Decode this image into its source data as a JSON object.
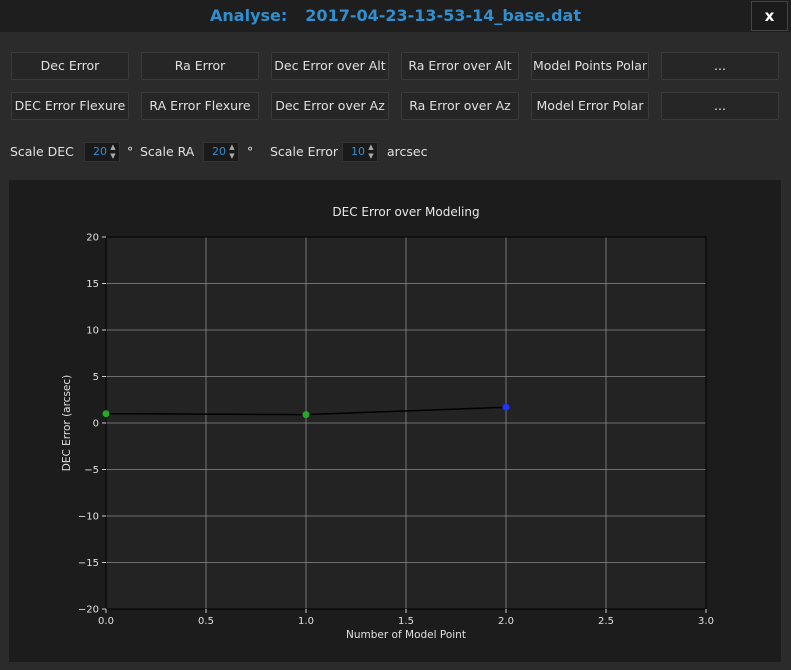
{
  "window": {
    "title_label": "Analyse:",
    "title_file": "2017-04-23-13-53-14_base.dat",
    "close_label": "x"
  },
  "buttons_row1": [
    "Dec Error",
    "Ra Error",
    "Dec Error over Alt",
    "Ra Error over Alt",
    "Model Points Polar",
    "..."
  ],
  "buttons_row2": [
    "DEC Error Flexure",
    "RA Error Flexure",
    "Dec Error over Az",
    "Ra Error over Az",
    "Model Error Polar",
    "..."
  ],
  "scales": {
    "dec_label": "Scale DEC",
    "dec_value": "20",
    "dec_unit": "°",
    "ra_label": "Scale RA",
    "ra_value": "20",
    "ra_unit": "°",
    "error_label": "Scale Error",
    "error_value": "10",
    "error_unit": "arcsec"
  },
  "icons": {
    "spin_up": "triangle-up-icon",
    "spin_down": "triangle-down-icon"
  },
  "chart_data": {
    "type": "line",
    "title": "DEC Error over Modeling",
    "xlabel": "Number of Model Point",
    "ylabel": "DEC Error (arcsec)",
    "xlim": [
      0.0,
      3.0
    ],
    "ylim": [
      -20,
      20
    ],
    "xticks": [
      0.0,
      0.5,
      1.0,
      1.5,
      2.0,
      2.5,
      3.0
    ],
    "xtick_labels": [
      "0.0",
      "0.5",
      "1.0",
      "1.5",
      "2.0",
      "2.5",
      "3.0"
    ],
    "yticks": [
      -20,
      -15,
      -10,
      -5,
      0,
      5,
      10,
      15,
      20
    ],
    "ytick_labels": [
      "−20",
      "−15",
      "−10",
      "−5",
      "0",
      "5",
      "10",
      "15",
      "20"
    ],
    "grid": true,
    "x": [
      0,
      1,
      2
    ],
    "y": [
      1.0,
      0.9,
      1.7
    ],
    "point_colors": [
      "#22aa22",
      "#22aa22",
      "#2233ff"
    ],
    "line_color": "#000000"
  }
}
